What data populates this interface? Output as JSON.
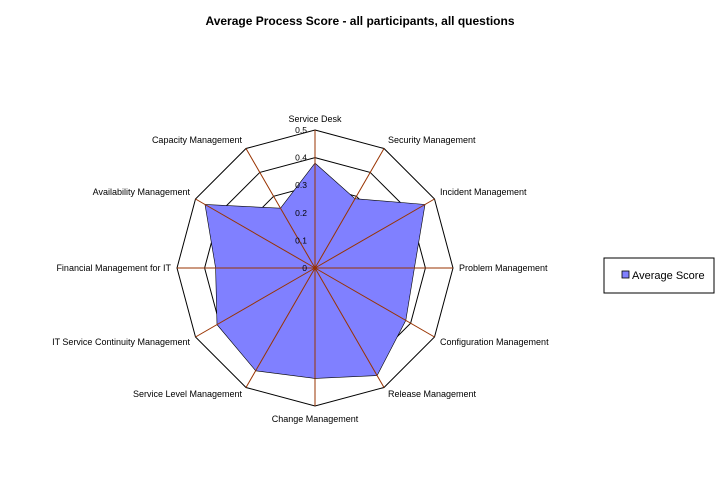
{
  "chart_data": {
    "type": "radar",
    "title": "Average Process Score - all participants, all questions",
    "categories": [
      "Service Desk",
      "Security Management",
      "Incident Management",
      "Problem Management",
      "Configuration Management",
      "Release Management",
      "Change Management",
      "Service Level Management",
      "IT Service Continuity Management",
      "Financial Management for IT",
      "Availability Management",
      "Capacity Management"
    ],
    "series": [
      {
        "name": "Average Score",
        "color": "#8080ff",
        "values": [
          0.38,
          0.29,
          0.46,
          0.36,
          0.38,
          0.45,
          0.4,
          0.43,
          0.41,
          0.36,
          0.46,
          0.25
        ]
      }
    ],
    "rlim": [
      0,
      0.5
    ],
    "ticks": [
      "0",
      "0.1",
      "0.2",
      "0.3",
      "0.4",
      "0.5"
    ],
    "gridline_color": "#000000",
    "spoke_color": "#993300",
    "legend_position": "right"
  }
}
